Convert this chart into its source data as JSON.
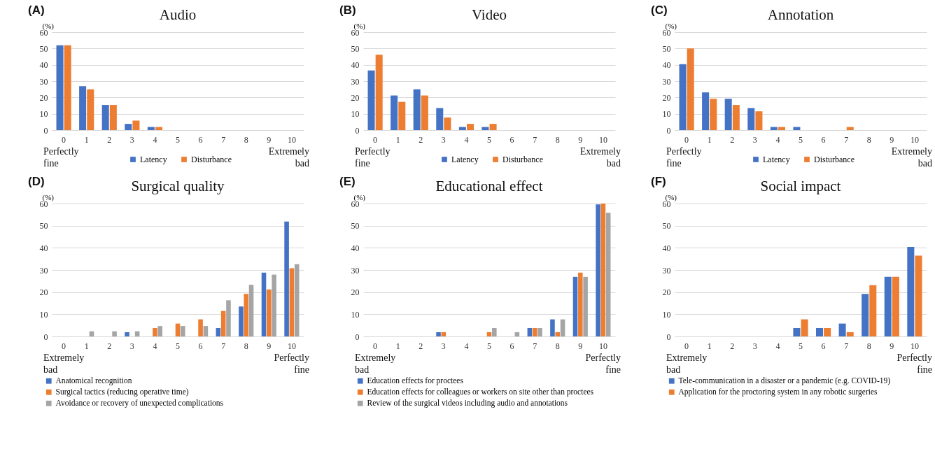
{
  "chart_data": [
    {
      "type": "bar",
      "title": "Audio",
      "ylabel": "(%)",
      "annotations": [
        "(A)",
        "Perfectly fine",
        "Extremely bad"
      ],
      "categories": [
        "0",
        "1",
        "2",
        "3",
        "4",
        "5",
        "6",
        "7",
        "8",
        "9",
        "10"
      ],
      "ylim": [
        0,
        60
      ],
      "yticks": [
        0,
        10,
        20,
        30,
        40,
        50,
        60
      ],
      "grid": "y",
      "legend": "bottom",
      "series": [
        {
          "name": "Latency",
          "color": "#4472c4",
          "values": [
            52,
            26.9,
            15.4,
            3.8,
            1.9,
            0,
            0,
            0,
            0,
            0,
            0
          ]
        },
        {
          "name": "Disturbance",
          "color": "#ed7d31",
          "values": [
            52,
            25,
            15.4,
            5.8,
            1.9,
            0,
            0,
            0,
            0,
            0,
            0
          ]
        }
      ]
    },
    {
      "type": "bar",
      "title": "Video",
      "ylabel": "(%)",
      "annotations": [
        "(B)",
        "Perfectly fine",
        "Extremely bad"
      ],
      "categories": [
        "0",
        "1",
        "2",
        "3",
        "4",
        "5",
        "6",
        "7",
        "8",
        "9",
        "10"
      ],
      "ylim": [
        0,
        60
      ],
      "yticks": [
        0,
        10,
        20,
        30,
        40,
        50,
        60
      ],
      "grid": "y",
      "legend": "bottom",
      "series": [
        {
          "name": "Latency",
          "color": "#4472c4",
          "values": [
            36.5,
            21.2,
            25,
            13.5,
            1.9,
            1.9,
            0,
            0,
            0,
            0,
            0
          ]
        },
        {
          "name": "Disturbance",
          "color": "#ed7d31",
          "values": [
            46.2,
            17.3,
            21.2,
            7.7,
            3.8,
            3.8,
            0,
            0,
            0,
            0,
            0
          ]
        }
      ]
    },
    {
      "type": "bar",
      "title": "Annotation",
      "ylabel": "(%)",
      "annotations": [
        "(C)",
        "Perfectly fine",
        "Extremely bad"
      ],
      "categories": [
        "0",
        "1",
        "2",
        "3",
        "4",
        "5",
        "6",
        "7",
        "8",
        "9",
        "10"
      ],
      "ylim": [
        0,
        60
      ],
      "yticks": [
        0,
        10,
        20,
        30,
        40,
        50,
        60
      ],
      "grid": "y",
      "legend": "bottom",
      "series": [
        {
          "name": "Latency",
          "color": "#4472c4",
          "values": [
            40.4,
            23.1,
            19.2,
            13.5,
            1.9,
            1.9,
            0,
            0,
            0,
            0,
            0
          ]
        },
        {
          "name": "Disturbance",
          "color": "#ed7d31",
          "values": [
            50,
            19.2,
            15.4,
            11.5,
            1.9,
            0,
            0,
            1.9,
            0,
            0,
            0
          ]
        }
      ]
    },
    {
      "type": "bar",
      "title": "Surgical quality",
      "ylabel": "(%)",
      "annotations": [
        "(D)",
        "Extremely bad",
        "Perfectly fine"
      ],
      "categories": [
        "0",
        "1",
        "2",
        "3",
        "4",
        "5",
        "6",
        "7",
        "8",
        "9",
        "10"
      ],
      "ylim": [
        0,
        60
      ],
      "yticks": [
        0,
        10,
        20,
        30,
        40,
        50,
        60
      ],
      "grid": "y",
      "legend": "bottom",
      "series": [
        {
          "name": "Anatomical recognition",
          "color": "#4472c4",
          "values": [
            0,
            0,
            0,
            1.9,
            0,
            0,
            0,
            3.8,
            13.5,
            28.8,
            51.9
          ]
        },
        {
          "name": "Surgical tactics (reducing operative time)",
          "color": "#ed7d31",
          "values": [
            0,
            0,
            0,
            0,
            3.8,
            5.8,
            7.7,
            11.5,
            19.2,
            21.2,
            30.8
          ]
        },
        {
          "name": "Avoidance or recovery of unexpected complications",
          "color": "#a5a5a5",
          "values": [
            0,
            2.3,
            2.3,
            2.3,
            4.7,
            4.7,
            4.7,
            16.3,
            23.3,
            27.9,
            32.6
          ]
        }
      ]
    },
    {
      "type": "bar",
      "title": "Educational effect",
      "ylabel": "(%)",
      "annotations": [
        "(E)",
        "Extremely bad",
        "Perfectly fine"
      ],
      "categories": [
        "0",
        "1",
        "2",
        "3",
        "4",
        "5",
        "6",
        "7",
        "8",
        "9",
        "10"
      ],
      "ylim": [
        0,
        60
      ],
      "yticks": [
        0,
        10,
        20,
        30,
        40,
        50,
        60
      ],
      "grid": "y",
      "legend": "bottom",
      "series": [
        {
          "name": "Education effects for proctees",
          "color": "#4472c4",
          "values": [
            0,
            0,
            0,
            1.9,
            0,
            0,
            0,
            3.8,
            7.7,
            26.9,
            59.6
          ]
        },
        {
          "name": "Education effects for colleagues or workers on site other than proctees",
          "color": "#ed7d31",
          "values": [
            0,
            0,
            0,
            1.9,
            0,
            1.9,
            0,
            3.8,
            1.9,
            28.8,
            60
          ]
        },
        {
          "name": "Review of the surgical videos including audio and annotations",
          "color": "#a5a5a5",
          "values": [
            0,
            0,
            0,
            0,
            0,
            3.8,
            1.9,
            3.8,
            7.7,
            26.9,
            55.8
          ]
        }
      ]
    },
    {
      "type": "bar",
      "title": "Social impact",
      "ylabel": "(%)",
      "annotations": [
        "(F)",
        "Extremely bad",
        "Perfectly fine"
      ],
      "categories": [
        "0",
        "1",
        "2",
        "3",
        "4",
        "5",
        "6",
        "7",
        "8",
        "9",
        "10"
      ],
      "ylim": [
        0,
        60
      ],
      "yticks": [
        0,
        10,
        20,
        30,
        40,
        50,
        60
      ],
      "grid": "y",
      "legend": "bottom",
      "series": [
        {
          "name": "Tele-communication in a disaster or a pandemic (e.g. COVID-19)",
          "color": "#4472c4",
          "values": [
            0,
            0,
            0,
            0,
            0,
            3.8,
            3.8,
            5.8,
            19.2,
            26.9,
            40.4
          ]
        },
        {
          "name": "Application for the proctoring system in any robotic surgeries",
          "color": "#ed7d31",
          "values": [
            0,
            0,
            0,
            0,
            0,
            7.7,
            3.8,
            1.9,
            23.1,
            26.9,
            36.5
          ]
        }
      ]
    }
  ]
}
